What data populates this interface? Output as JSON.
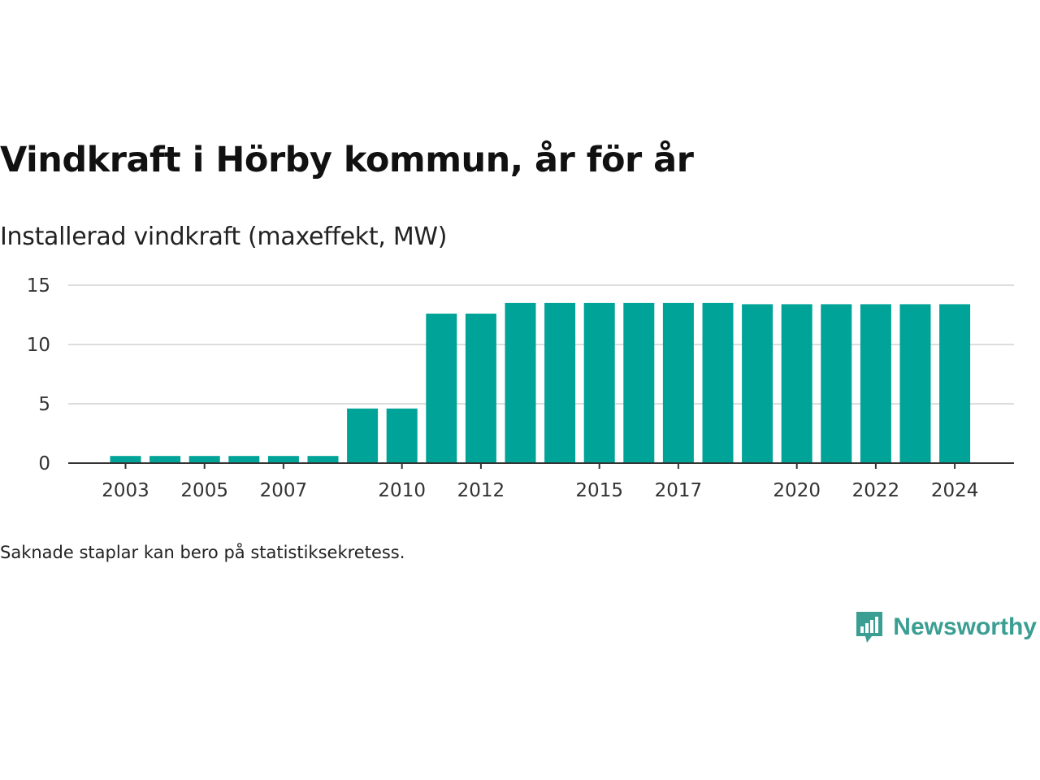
{
  "colors": {
    "bar": "#00a398",
    "grid": "#dddddd",
    "axis": "#333333",
    "brand": "#3a9e92"
  },
  "header": {
    "title": "Vindkraft i Hörby kommun, år för år",
    "subtitle": "Installerad vindkraft (maxeffekt, MW)"
  },
  "footer": {
    "note": "Saknade staplar kan bero på statistiksekretess.",
    "brand_name": "Newsworthy",
    "brand_icon": "newsworthy-logo-icon"
  },
  "chart_data": {
    "type": "bar",
    "title": "Vindkraft i Hörby kommun, år för år",
    "ylabel": "Installerad vindkraft (maxeffekt, MW)",
    "xlabel": "",
    "categories": [
      "2003",
      "2004",
      "2005",
      "2006",
      "2007",
      "2008",
      "2009",
      "2010",
      "2011",
      "2012",
      "2013",
      "2014",
      "2015",
      "2016",
      "2017",
      "2018",
      "2019",
      "2020",
      "2021",
      "2022",
      "2023",
      "2024"
    ],
    "values": [
      0.6,
      0.6,
      0.6,
      0.6,
      0.6,
      0.6,
      4.6,
      4.6,
      12.6,
      12.6,
      13.5,
      13.5,
      13.5,
      13.5,
      13.5,
      13.5,
      13.4,
      13.4,
      13.4,
      13.4,
      13.4,
      13.4
    ],
    "xticks": [
      "2003",
      "2005",
      "2007",
      "2010",
      "2012",
      "2015",
      "2017",
      "2020",
      "2022",
      "2024"
    ],
    "yticks": [
      0,
      5,
      10,
      15
    ],
    "ylim": [
      0,
      15
    ],
    "grid": true
  }
}
